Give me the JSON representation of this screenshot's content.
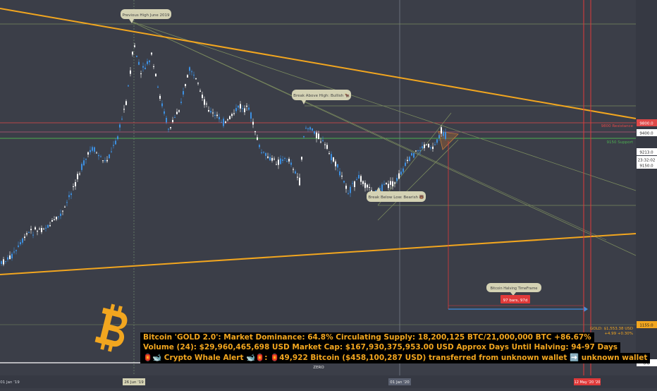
{
  "chart_data": {
    "type": "candlestick",
    "annotations": {
      "previous_high": "Previous High June 2019",
      "break_above": "Break Above High: Bullish 🐂",
      "break_below": "Break Below Low: Bearish 🐻",
      "halving_label": "Bitcoin Halving TimeFrame",
      "halving_countdown": "97 bars, 97d"
    },
    "levels": {
      "resistance_label": "9800 Resistance",
      "support_label": "9150 Support",
      "resistance_value": "9800.0",
      "price_9400": "9400.0",
      "price_9213": "9213.0",
      "clock": "23:32:02",
      "price_9150": "9150.0",
      "gold_price": "1155.0",
      "zero_value": "0.0",
      "zero_label": "ZERO",
      "gold_note_1": "GOLD: $1,553.38 USD",
      "gold_note_2": "+4.99 +0.30%"
    },
    "x_axis_dates": [
      "01 Jan '19",
      "26 Jun '19",
      "01 Jan '20",
      "12 May '20 '20"
    ],
    "colors": {
      "background": "#3b3e48",
      "candle_up": "#3d8fe0",
      "candle_down": "#ffffff",
      "trendline": "#f2a61f",
      "resistance": "#e04848",
      "support": "#4caf50",
      "halving_line": "#e03a3a",
      "info_text": "#f2a61f"
    }
  },
  "info_panel": {
    "line1": "Bitcoin 'GOLD 2.0': Market Dominance: 64.8%  Circulating Supply: 18,200,125 BTC/21,000,000 BTC +86.67%",
    "line2": "Volume (24): $29,960,465,698 USD  Market Cap: $167,930,375,953.00 USD Approx Days Until Halving: 94-97 Days",
    "line3": "🏮🐋 Crypto Whale Alert 🐋🏮: 🏮49,922 Bitcoin ($458,100,287 USD) transferred from unknown wallet ➡️ unknown wallet"
  }
}
